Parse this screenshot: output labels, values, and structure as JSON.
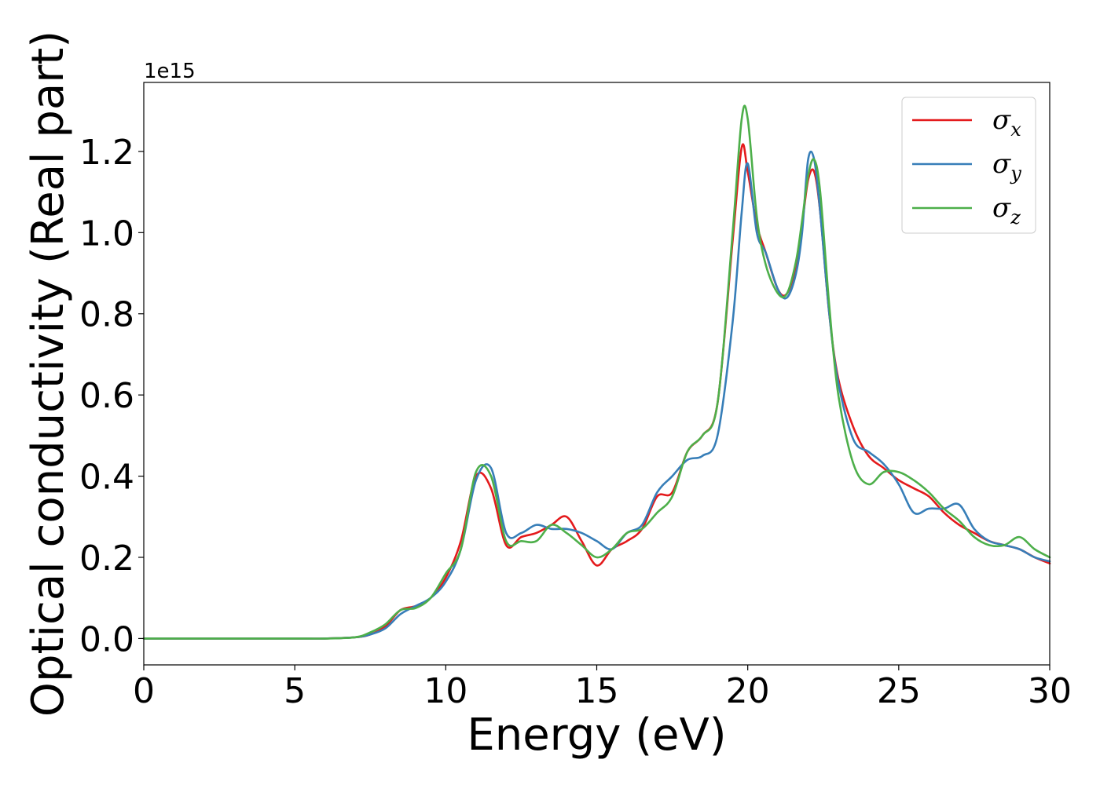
{
  "chart_data": {
    "type": "line",
    "xlabel": "Energy (eV)",
    "ylabel": "Optical conductivity (Real part)",
    "y_offset_text": "1e15",
    "y_multiplier": 1000000000000000.0,
    "xlim": [
      0,
      30
    ],
    "ylim": [
      -0.065,
      1.37
    ],
    "xticks": [
      0,
      5,
      10,
      15,
      20,
      25,
      30
    ],
    "yticks": [
      0.0,
      0.2,
      0.4,
      0.6,
      0.8,
      1.0,
      1.2
    ],
    "ytick_labels": [
      "0.0",
      "0.2",
      "0.4",
      "0.6",
      "0.8",
      "1.0",
      "1.2"
    ],
    "grid": false,
    "legend_position": "top-right",
    "x": [
      0,
      1,
      2,
      3,
      4,
      5,
      6,
      7,
      7.5,
      8,
      8.5,
      9,
      9.5,
      10,
      10.5,
      11,
      11.5,
      12,
      12.5,
      13,
      13.5,
      14,
      14.5,
      15,
      15.5,
      16,
      16.5,
      17,
      17.5,
      18,
      18.5,
      19,
      19.5,
      19.8,
      20,
      20.3,
      20.6,
      21,
      21.3,
      21.6,
      21.8,
      22,
      22.2,
      22.4,
      22.7,
      23,
      23.5,
      24,
      24.5,
      25,
      25.5,
      26,
      26.5,
      27,
      27.5,
      28,
      28.5,
      29,
      29.5,
      30
    ],
    "series": [
      {
        "name": "σx",
        "label_base": "σ",
        "label_sub": "x",
        "color": "#e41a1c",
        "values": [
          0,
          0,
          0,
          0,
          0,
          0,
          0,
          0.003,
          0.01,
          0.03,
          0.07,
          0.08,
          0.1,
          0.15,
          0.24,
          0.4,
          0.37,
          0.23,
          0.25,
          0.26,
          0.28,
          0.3,
          0.24,
          0.18,
          0.22,
          0.24,
          0.27,
          0.35,
          0.36,
          0.46,
          0.5,
          0.58,
          0.98,
          1.21,
          1.15,
          1.02,
          0.95,
          0.86,
          0.85,
          0.92,
          1.02,
          1.13,
          1.15,
          1.05,
          0.8,
          0.64,
          0.52,
          0.45,
          0.42,
          0.39,
          0.37,
          0.35,
          0.31,
          0.28,
          0.26,
          0.24,
          0.23,
          0.22,
          0.2,
          0.185
        ]
      },
      {
        "name": "σy",
        "label_base": "σ",
        "label_sub": "y",
        "color": "#377eb8",
        "values": [
          0,
          0,
          0,
          0,
          0,
          0,
          0,
          0.003,
          0.01,
          0.025,
          0.06,
          0.08,
          0.1,
          0.14,
          0.22,
          0.39,
          0.42,
          0.26,
          0.26,
          0.28,
          0.27,
          0.27,
          0.26,
          0.24,
          0.22,
          0.26,
          0.28,
          0.36,
          0.4,
          0.44,
          0.45,
          0.5,
          0.78,
          1.05,
          1.17,
          1.0,
          0.95,
          0.86,
          0.84,
          0.9,
          1.0,
          1.18,
          1.18,
          1.05,
          0.8,
          0.63,
          0.49,
          0.46,
          0.43,
          0.38,
          0.31,
          0.32,
          0.32,
          0.33,
          0.27,
          0.24,
          0.23,
          0.22,
          0.2,
          0.19
        ]
      },
      {
        "name": "σz",
        "label_base": "σ",
        "label_sub": "z",
        "color": "#4daf4a",
        "values": [
          0,
          0,
          0,
          0,
          0,
          0,
          0,
          0.003,
          0.015,
          0.035,
          0.07,
          0.075,
          0.1,
          0.16,
          0.22,
          0.41,
          0.4,
          0.24,
          0.24,
          0.24,
          0.28,
          0.26,
          0.23,
          0.2,
          0.22,
          0.26,
          0.27,
          0.31,
          0.35,
          0.46,
          0.5,
          0.58,
          1.0,
          1.28,
          1.28,
          1.04,
          0.92,
          0.85,
          0.85,
          0.93,
          1.03,
          1.14,
          1.18,
          1.1,
          0.82,
          0.6,
          0.43,
          0.38,
          0.41,
          0.41,
          0.39,
          0.36,
          0.32,
          0.29,
          0.25,
          0.23,
          0.23,
          0.25,
          0.22,
          0.2
        ]
      }
    ]
  }
}
